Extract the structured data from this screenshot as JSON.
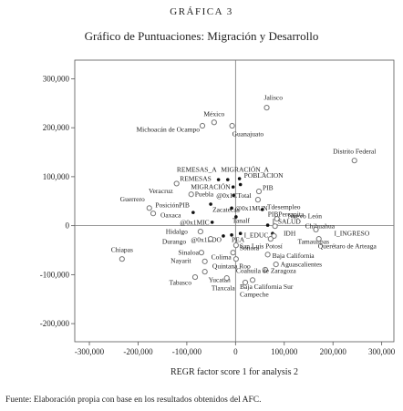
{
  "chart_data": {
    "type": "scatter",
    "header": "GRÁFICA 3",
    "title": "Gráfico de Puntuaciones: Migración y Desarrollo",
    "xlabel": "REGR factor score   1 for analysis 2",
    "source": "Fuente: Elaboración propia con base en los resultados obtenidos del AFC.",
    "xlim": [
      -330000,
      325000
    ],
    "ylim": [
      -237000,
      338000
    ],
    "xticks": [
      {
        "value": -300000,
        "label": "-300,000"
      },
      {
        "value": -200000,
        "label": "-200,000"
      },
      {
        "value": -100000,
        "label": "-100,000"
      },
      0,
      {
        "value": 100000,
        "label": "100,000"
      },
      {
        "value": 200000,
        "label": "200,000"
      },
      {
        "value": 300000,
        "label": "300,000"
      }
    ],
    "yticks": [
      {
        "value": -200000,
        "label": "-200,000"
      },
      {
        "value": -100000,
        "label": "-100,000"
      },
      0,
      {
        "value": 100000,
        "label": "100,000"
      },
      {
        "value": 200000,
        "label": "200,000"
      },
      {
        "value": 300000,
        "label": "300,000"
      }
    ],
    "labels": [
      "Jalisco",
      "México",
      "Michoacán de Ocampo",
      "Guanajuato",
      "Distrito Federal",
      "REMESAS_A",
      "REMESAS",
      "MIGRACIÓN_A",
      "MIGRACIÓN",
      "POBLACION",
      "Veracruz",
      "Puebla",
      "@0x1CTotal",
      "PIB",
      "Guerrero",
      "PosiciónPIB",
      "Oaxaca",
      "Zacatecas",
      "@0x1MUN",
      "Tdesempleo",
      "PIBPercapita",
      "Nuevo León",
      "Tanalf",
      "@0x1MIC",
      "I_SALUD",
      "Chihuahua",
      "Hidalgo",
      "@0x1EDO",
      "Durango",
      "PEA",
      "I_EDUC",
      "IDH",
      "I_INGRESO",
      "Tamaulipas",
      "Sonora",
      "San Luis Potosí",
      "Querétaro de Arteaga",
      "Baja California",
      "Chiapas",
      "Sinaloa",
      "Nayarit",
      "Colima",
      "Quintana Roo",
      "Aguascalientes",
      "Coahuila de Zaragoza",
      "Tabasco",
      "Yucatán",
      "Tlaxcala",
      "Baja California Sur",
      "Campeche"
    ],
    "x": [
      64000,
      -44000,
      -68000,
      -7000,
      244000,
      -35000,
      -16000,
      8000,
      -5000,
      10000,
      -121000,
      -91000,
      -4000,
      48000,
      -177000,
      -87000,
      -169000,
      -51000,
      -8000,
      46000,
      55000,
      85000,
      1000,
      -48000,
      66000,
      81000,
      -72000,
      -25000,
      -51000,
      -8000,
      10000,
      76000,
      165000,
      79000,
      1000,
      72000,
      171000,
      66000,
      -233000,
      -70000,
      -63000,
      -5000,
      1000,
      83000,
      61000,
      -83000,
      -63000,
      -18000,
      35000,
      20000
    ],
    "y": [
      241000,
      211000,
      204000,
      204000,
      133000,
      94000,
      94000,
      96000,
      79000,
      84000,
      86000,
      64000,
      62000,
      70000,
      36000,
      27000,
      25000,
      44000,
      36000,
      53000,
      33000,
      14000,
      18000,
      7000,
      1000,
      -1000,
      -12000,
      -21000,
      -27000,
      -19000,
      -16000,
      -16000,
      -8000,
      -21000,
      -40000,
      -27000,
      -27000,
      -59000,
      -68000,
      -55000,
      -73000,
      -55000,
      -68000,
      -79000,
      -90000,
      -105000,
      -94000,
      -107000,
      -111000,
      -116000
    ],
    "marker": [
      "circle",
      "circle",
      "circle",
      "circle",
      "circle",
      "star",
      "star",
      "star",
      "star",
      "star",
      "circle",
      "circle",
      "star",
      "circle",
      "circle",
      "star",
      "circle",
      "star",
      "star",
      "circle",
      "star",
      "circle",
      "star",
      "star",
      "star",
      "circle",
      "circle",
      "star",
      "circle",
      "star",
      "star",
      "star",
      "circle",
      "circle",
      "circle",
      "circle",
      "circle",
      "circle",
      "circle",
      "circle",
      "circle",
      "circle",
      "circle",
      "circle",
      "circle",
      "circle",
      "circle",
      "circle",
      "circle",
      "circle"
    ],
    "color": "#777777"
  }
}
